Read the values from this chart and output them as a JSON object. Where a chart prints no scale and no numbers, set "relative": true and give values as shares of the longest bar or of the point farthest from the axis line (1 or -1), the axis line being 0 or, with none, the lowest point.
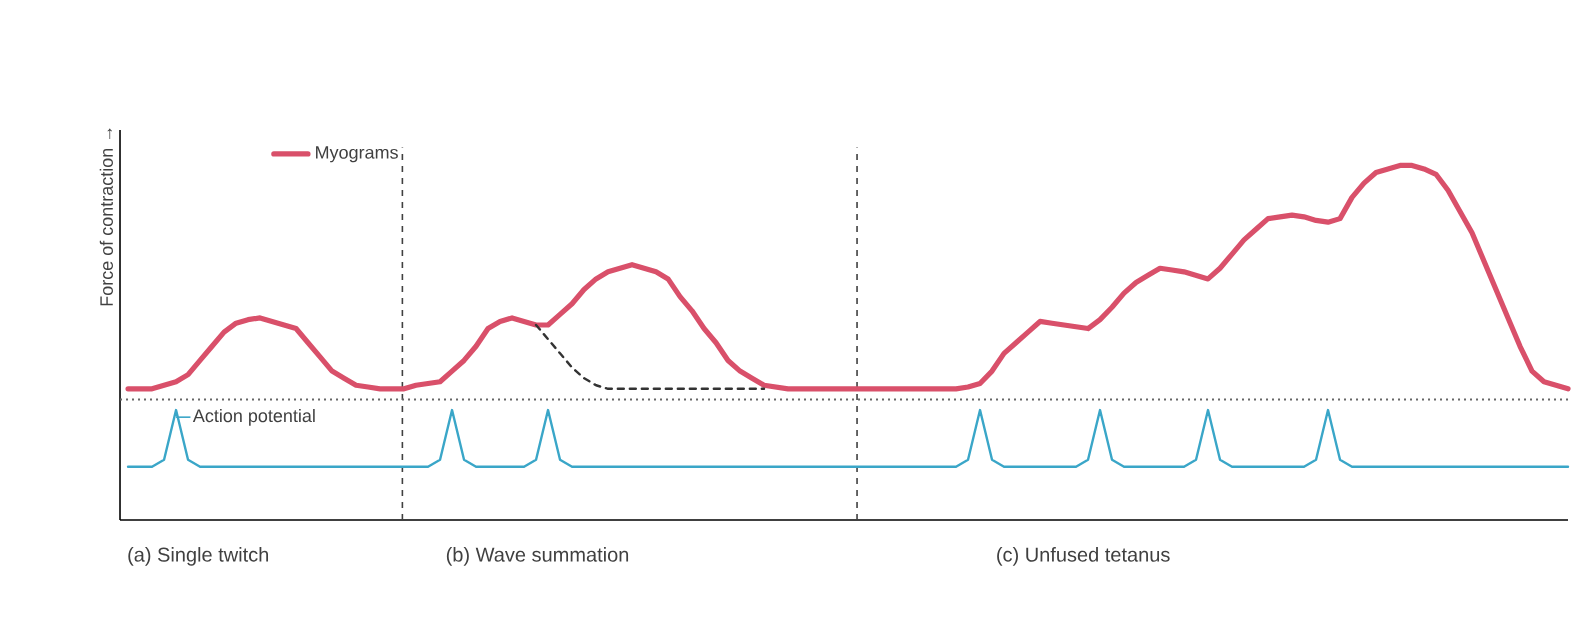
{
  "chart_data": {
    "type": "line",
    "relative": true,
    "ylabel": "Force of contraction →",
    "legend": "top left",
    "categories": [
      null,
      null,
      null,
      null,
      null,
      null,
      null,
      null,
      null,
      null,
      null,
      null,
      null,
      null,
      null,
      null,
      null,
      null,
      null,
      null,
      null,
      null,
      null,
      null,
      null,
      null,
      null,
      null,
      null,
      null,
      null,
      null,
      null,
      null,
      null,
      null,
      null,
      null,
      null,
      null,
      null,
      null,
      null,
      null,
      null,
      null,
      null,
      null,
      null,
      null,
      null,
      null,
      null,
      null,
      null,
      null,
      null,
      null,
      null,
      null,
      null,
      null,
      null,
      null,
      null,
      null,
      null,
      null,
      null,
      null,
      null,
      null,
      null,
      null,
      null,
      null,
      null,
      null,
      null,
      null,
      null,
      null,
      null,
      null,
      null,
      null,
      null,
      null,
      null,
      null,
      null,
      null,
      null,
      null,
      null,
      null,
      null,
      null,
      null,
      null,
      null,
      null,
      null,
      null,
      null,
      null,
      null,
      null,
      null,
      null,
      null,
      null,
      null,
      null,
      null,
      null,
      null,
      null,
      null,
      null,
      null
    ],
    "series": [
      {
        "name": "Myograms",
        "color": "#d9506a",
        "values": [
          0.37,
          0.37,
          0.37,
          0.38,
          0.39,
          0.41,
          0.45,
          0.49,
          0.53,
          0.555,
          0.565,
          0.57,
          0.56,
          0.55,
          0.54,
          0.5,
          0.46,
          0.42,
          0.4,
          0.38,
          0.375,
          0.37,
          0.37,
          0.37,
          0.38,
          0.385,
          0.39,
          0.42,
          0.45,
          0.49,
          0.54,
          0.56,
          0.57,
          0.56,
          0.55,
          0.55,
          0.58,
          0.61,
          0.65,
          0.68,
          0.7,
          0.71,
          0.72,
          0.71,
          0.7,
          0.68,
          0.63,
          0.59,
          0.54,
          0.5,
          0.45,
          0.42,
          0.4,
          0.38,
          0.375,
          0.37,
          0.37,
          0.37,
          0.37,
          0.37,
          0.37,
          0.37,
          0.37,
          0.37,
          0.37,
          0.37,
          0.37,
          0.37,
          0.37,
          0.37,
          0.375,
          0.385,
          0.42,
          0.47,
          0.5,
          0.53,
          0.56,
          0.555,
          0.55,
          0.545,
          0.54,
          0.565,
          0.6,
          0.64,
          0.67,
          0.69,
          0.71,
          0.705,
          0.7,
          0.69,
          0.68,
          0.71,
          0.75,
          0.79,
          0.82,
          0.85,
          0.855,
          0.86,
          0.855,
          0.845,
          0.84,
          0.85,
          0.91,
          0.95,
          0.98,
          0.99,
          1,
          1,
          0.99,
          0.975,
          0.93,
          0.87,
          0.81,
          0.73,
          0.65,
          0.57,
          0.49,
          0.42,
          0.39,
          0.38,
          0.37
        ]
      },
      {
        "color": "#333333",
        "line_style": "dashed",
        "values": [
          null,
          null,
          null,
          null,
          null,
          null,
          null,
          null,
          null,
          null,
          null,
          null,
          null,
          null,
          null,
          null,
          null,
          null,
          null,
          null,
          null,
          null,
          null,
          null,
          null,
          null,
          null,
          null,
          null,
          null,
          null,
          null,
          null,
          null,
          0.55,
          0.51,
          0.47,
          0.43,
          0.4,
          0.38,
          0.37,
          0.37,
          0.37,
          0.37,
          0.37,
          0.37,
          0.37,
          0.37,
          0.37,
          0.37,
          0.37,
          0.37,
          0.37,
          0.37,
          null,
          null,
          null,
          null,
          null,
          null,
          null,
          null,
          null,
          null,
          null,
          null,
          null,
          null,
          null,
          null,
          null,
          null,
          null,
          null,
          null,
          null,
          null,
          null,
          null,
          null,
          null,
          null,
          null,
          null,
          null,
          null,
          null,
          null,
          null,
          null,
          null,
          null,
          null,
          null,
          null,
          null,
          null,
          null,
          null,
          null,
          null,
          null,
          null,
          null,
          null,
          null,
          null,
          null,
          null,
          null,
          null,
          null,
          null,
          null,
          null,
          null,
          null,
          null,
          null,
          null,
          null
        ]
      },
      {
        "name": "Action potential",
        "color": "#3aa6c8",
        "values": [
          0.15,
          0.15,
          0.15,
          0.17,
          0.31,
          0.17,
          0.15,
          0.15,
          0.15,
          0.15,
          0.15,
          0.15,
          0.15,
          0.15,
          0.15,
          0.15,
          0.15,
          0.15,
          0.15,
          0.15,
          0.15,
          0.15,
          0.15,
          0.15,
          0.15,
          0.15,
          0.17,
          0.31,
          0.17,
          0.15,
          0.15,
          0.15,
          0.15,
          0.15,
          0.17,
          0.31,
          0.17,
          0.15,
          0.15,
          0.15,
          0.15,
          0.15,
          0.15,
          0.15,
          0.15,
          0.15,
          0.15,
          0.15,
          0.15,
          0.15,
          0.15,
          0.15,
          0.15,
          0.15,
          0.15,
          0.15,
          0.15,
          0.15,
          0.15,
          0.15,
          0.15,
          0.15,
          0.15,
          0.15,
          0.15,
          0.15,
          0.15,
          0.15,
          0.15,
          0.15,
          0.17,
          0.31,
          0.17,
          0.15,
          0.15,
          0.15,
          0.15,
          0.15,
          0.15,
          0.15,
          0.17,
          0.31,
          0.17,
          0.15,
          0.15,
          0.15,
          0.15,
          0.15,
          0.15,
          0.17,
          0.31,
          0.17,
          0.15,
          0.15,
          0.15,
          0.15,
          0.15,
          0.15,
          0.15,
          0.17,
          0.31,
          0.17,
          0.15,
          0.15,
          0.15,
          0.15,
          0.15,
          0.15,
          0.15,
          0.15,
          0.15,
          0.15,
          0.15,
          0.15,
          0.15,
          0.15,
          0.15,
          0.15,
          0.15,
          0.15,
          0.15
        ]
      }
    ],
    "ref_lines": [
      {
        "axis": "y",
        "value": 0.34,
        "line_style": "dotted"
      }
    ],
    "annotations": [
      "(a) Single twitch",
      "(b) Wave summation",
      "(c) Unfused tetanus"
    ]
  }
}
